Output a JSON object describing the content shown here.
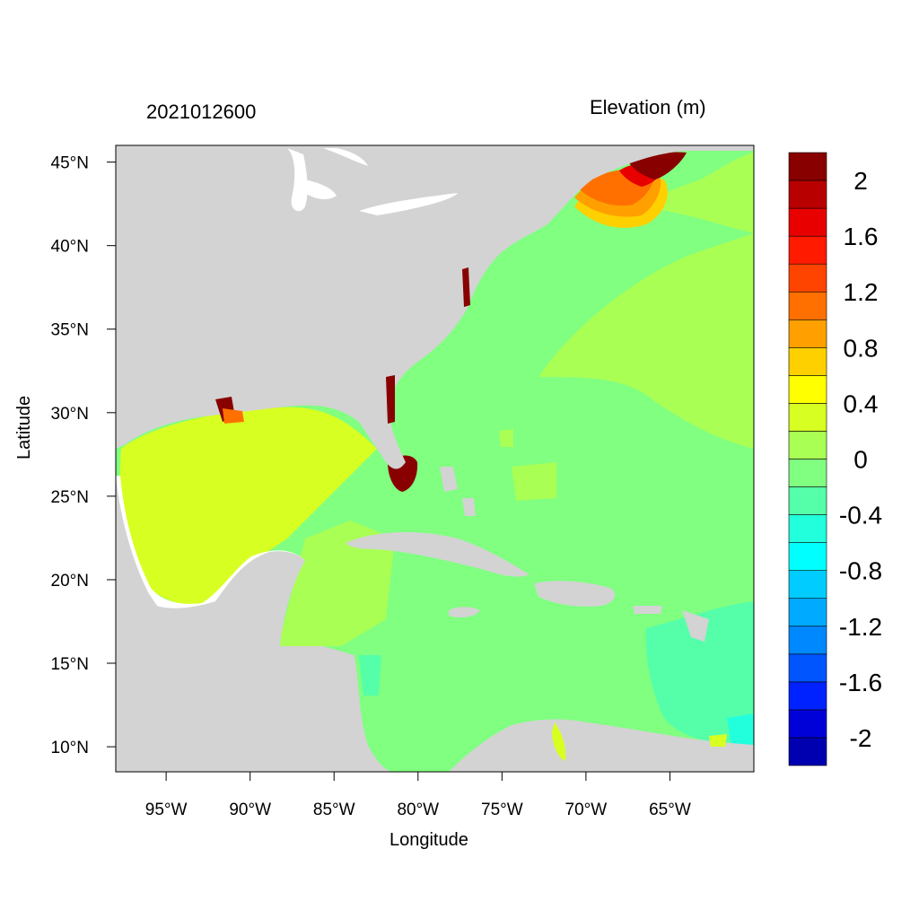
{
  "map": {
    "date_label": "2021012600",
    "variable_label": "Elevation (m)",
    "xlabel": "Longitude",
    "ylabel": "Latitude",
    "lon_range": [
      -98,
      -60
    ],
    "lat_range": [
      8.5,
      46
    ],
    "lon_ticks": [
      {
        "value": -95,
        "label": "95°W"
      },
      {
        "value": -90,
        "label": "90°W"
      },
      {
        "value": -85,
        "label": "85°W"
      },
      {
        "value": -80,
        "label": "80°W"
      },
      {
        "value": -75,
        "label": "75°W"
      },
      {
        "value": -70,
        "label": "70°W"
      },
      {
        "value": -65,
        "label": "65°W"
      }
    ],
    "lat_ticks": [
      {
        "value": 45,
        "label": "45°N"
      },
      {
        "value": 40,
        "label": "40°N"
      },
      {
        "value": 35,
        "label": "35°N"
      },
      {
        "value": 30,
        "label": "30°N"
      },
      {
        "value": 25,
        "label": "25°N"
      },
      {
        "value": 20,
        "label": "20°N"
      },
      {
        "value": 15,
        "label": "15°N"
      },
      {
        "value": 10,
        "label": "10°N"
      }
    ],
    "colors": {
      "land": "#d3d3d3",
      "white_gap": "#ffffff"
    }
  },
  "colorbar": {
    "levels": [
      -2.2,
      -2.0,
      -1.8,
      -1.6,
      -1.4,
      -1.2,
      -1.0,
      -0.8,
      -0.6,
      -0.4,
      -0.2,
      0,
      0.2,
      0.4,
      0.6,
      0.8,
      1.0,
      1.2,
      1.4,
      1.6,
      1.8,
      2.0,
      2.2
    ],
    "colors": [
      "#0000b0",
      "#0000d8",
      "#0022ff",
      "#0055ff",
      "#0088ff",
      "#00aaff",
      "#00ccff",
      "#00ffff",
      "#22ffdd",
      "#55ffaa",
      "#80ff80",
      "#aaff55",
      "#d8ff22",
      "#ffff00",
      "#ffd000",
      "#ffa000",
      "#ff7000",
      "#ff4400",
      "#ff1a00",
      "#e80000",
      "#b80000",
      "#880000"
    ],
    "labels": [
      {
        "value": 2.0,
        "label": "2"
      },
      {
        "value": 1.6,
        "label": "1.6"
      },
      {
        "value": 1.2,
        "label": "1.2"
      },
      {
        "value": 0.8,
        "label": "0.8"
      },
      {
        "value": 0.4,
        "label": "0.4"
      },
      {
        "value": 0,
        "label": "0"
      },
      {
        "value": -0.4,
        "label": "-0.4"
      },
      {
        "value": -0.8,
        "label": "-0.8"
      },
      {
        "value": -1.2,
        "label": "-1.2"
      },
      {
        "value": -1.6,
        "label": "-1.6"
      },
      {
        "value": -2.0,
        "label": "-2"
      }
    ]
  }
}
